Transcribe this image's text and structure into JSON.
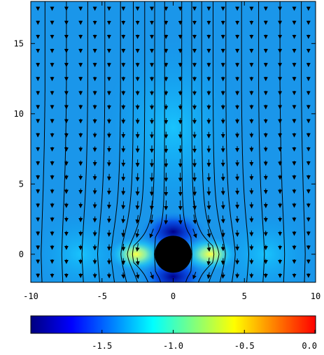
{
  "chart_data": {
    "type": "heatmap",
    "title": "",
    "xlabel": "",
    "ylabel": "",
    "xlim": [
      -10,
      10
    ],
    "ylim": [
      -2,
      18
    ],
    "x_ticks": [
      -10,
      -5,
      0,
      5,
      10
    ],
    "y_ticks": [
      0,
      5,
      10,
      15
    ],
    "x_tick_labels": [
      "-10",
      "-5",
      "0",
      "5",
      "10"
    ],
    "y_tick_labels": [
      "0",
      "5",
      "10",
      "15"
    ],
    "obstacle": {
      "shape": "circle",
      "center": [
        0,
        0
      ],
      "radius": 1.3,
      "color": "#000000"
    },
    "field": {
      "description_units": "log10 speed (colour scale)",
      "flow_direction": "downward toward obstacle",
      "far_field_value": -1.75,
      "min_value_at_poles": -1.95,
      "max_value_at_equator": -0.95
    },
    "vectors": {
      "style": "arrows",
      "spacing": 1.0,
      "color": "#000000"
    },
    "streamline_x_positions": [
      -9,
      -7.5,
      -6,
      -4.8,
      -3.7,
      -2.8,
      -2.0,
      -1.3,
      -0.6,
      0.6,
      1.3,
      2.0,
      2.8,
      3.7,
      4.8,
      6,
      7.5,
      9
    ],
    "colorbar": {
      "range": [
        -2.0,
        0.0
      ],
      "ticks": [
        -1.5,
        -1.0,
        -0.5,
        0.0
      ],
      "tick_labels": [
        "-1.5",
        "-1.0",
        "-0.5",
        "0.0"
      ],
      "colormap": [
        "#00007f",
        "#0000ff",
        "#007fff",
        "#00ffff",
        "#7fff7f",
        "#ffff00",
        "#ff7f00",
        "#ff0000"
      ]
    }
  }
}
